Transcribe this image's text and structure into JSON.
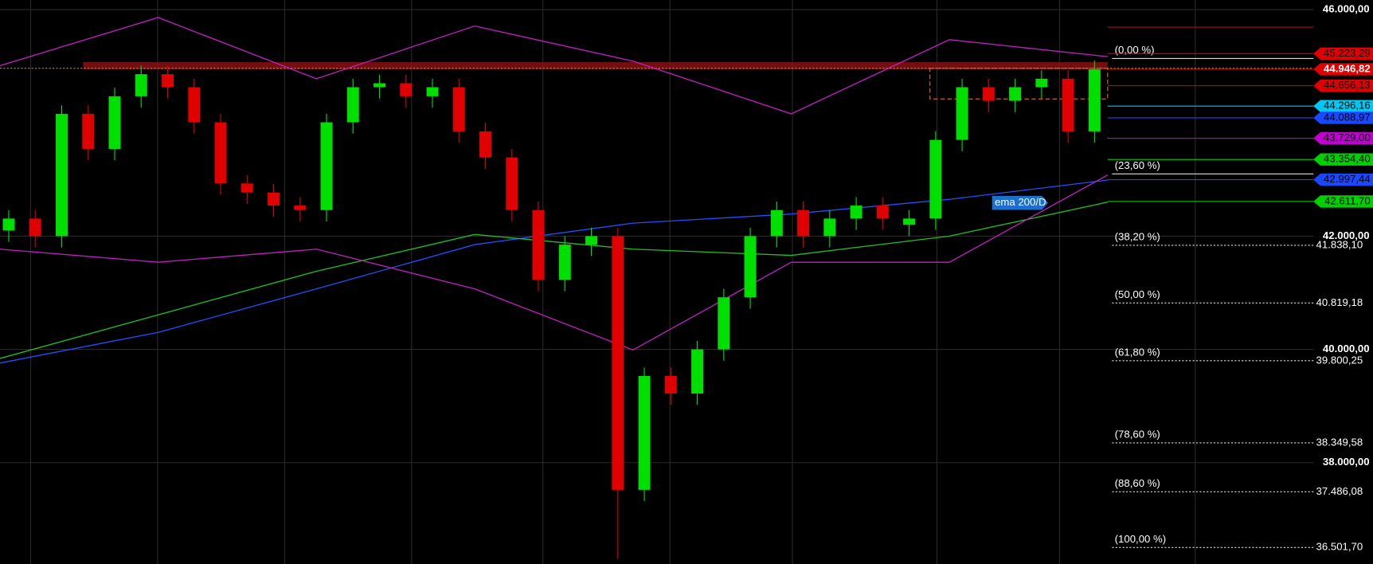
{
  "chart_data": {
    "type": "candlestick",
    "ylim": [
      36210,
      46170
    ],
    "yticks": [
      {
        "value": 46000,
        "label": "46.000,00"
      },
      {
        "value": 42000,
        "label": "42.000,00"
      },
      {
        "value": 40000,
        "label": "40.000,00"
      },
      {
        "value": 38000,
        "label": "38.000,00"
      }
    ],
    "grid": true,
    "up_color": "#00e000",
    "down_color": "#e00000",
    "open": [
      42100,
      42310,
      42000,
      44160,
      43540,
      44470,
      44860,
      44630,
      44010,
      42930,
      42770,
      42540,
      42460,
      44010,
      44630,
      44700,
      44470,
      44630,
      43850,
      43390,
      42460,
      41230,
      41850,
      42000,
      37520,
      39530,
      39220,
      40000,
      40920,
      42000,
      42460,
      42000,
      42310,
      42540,
      42200,
      42310,
      43700,
      44630,
      44390,
      44630,
      44780,
      43850
    ],
    "high": [
      42460,
      42460,
      44310,
      44310,
      44620,
      45010,
      45010,
      44780,
      44160,
      43080,
      42920,
      42690,
      44160,
      44780,
      44850,
      44850,
      44780,
      44780,
      44000,
      43540,
      42610,
      42000,
      42150,
      42150,
      39680,
      39680,
      40150,
      41070,
      42150,
      42610,
      42610,
      42460,
      42690,
      42690,
      42460,
      43850,
      44780,
      44780,
      44780,
      44930,
      44930,
      45100
    ],
    "low": [
      41900,
      41800,
      41800,
      43340,
      43340,
      44270,
      44430,
      43810,
      42730,
      42570,
      42340,
      42260,
      42260,
      43810,
      44430,
      44270,
      44270,
      43650,
      43190,
      42260,
      41030,
      41030,
      41650,
      36300,
      37320,
      39020,
      39020,
      39800,
      40720,
      41800,
      41800,
      41800,
      42110,
      42110,
      42000,
      42110,
      43500,
      44190,
      44190,
      44430,
      43650,
      43650
    ],
    "close": [
      42310,
      42000,
      44160,
      43540,
      44470,
      44860,
      44630,
      44010,
      42930,
      42770,
      42540,
      42460,
      44010,
      44630,
      44700,
      44470,
      44630,
      43850,
      43390,
      42460,
      41230,
      41850,
      42000,
      37520,
      39530,
      39220,
      40000,
      40920,
      42000,
      42460,
      42000,
      42310,
      42540,
      42310,
      42310,
      43700,
      44630,
      44390,
      44630,
      44780,
      43850,
      44946.82
    ],
    "lines": [
      {
        "color": "#2050ff",
        "values": [
          39760,
          40300,
          41070,
          41850,
          42230,
          42390,
          42650,
          42990
        ]
      },
      {
        "color": "#20c020",
        "values": [
          39840,
          40610,
          41380,
          42030,
          41770,
          41660,
          42000,
          42600
        ]
      },
      {
        "color": "#c020c0",
        "values": [
          45010,
          45860,
          44780,
          45710,
          45090,
          44160,
          45470,
          45170
        ]
      },
      {
        "color": "#c020c0",
        "values": [
          41770,
          41540,
          41770,
          41070,
          39990,
          41540,
          41540,
          43080
        ]
      }
    ],
    "annotation": "ema 200/D",
    "fib_levels": {
      "labels": [
        "(0,00 %)",
        "(23,60 %)",
        "(38,20 %)",
        "(50,00 %)",
        "(61,80 %)",
        "(78,60 %)",
        "(88,60 %)",
        "(100,00 %)"
      ],
      "values": [
        45136.7,
        43098.7,
        41838.1,
        40819.18,
        39800.25,
        38349.58,
        37486.08,
        36501.7
      ],
      "value_labels": [
        null,
        null,
        "41.838,10",
        "40.819,18",
        "39.800,25",
        "38.349,58",
        "37.486,08",
        "36.501,70"
      ]
    },
    "price_tags": {
      "values": [
        45223.29,
        44946.82,
        44656.13,
        44296.16,
        44088.97,
        43729.0,
        43354.4,
        42997.44,
        42611.7
      ],
      "value_labels": [
        "45.223,29",
        "44.946,82",
        "44.656,13",
        "44.296,16",
        "44.088,97",
        "43.729,00",
        "43.354,40",
        "42.997,44",
        "42.611,70"
      ],
      "colors": [
        "#e00000",
        "#e00000",
        "#e00000",
        "#00c8f0",
        "#1848ff",
        "#c000d0",
        "#00d000",
        "#1848ff",
        "#00d000"
      ]
    }
  }
}
